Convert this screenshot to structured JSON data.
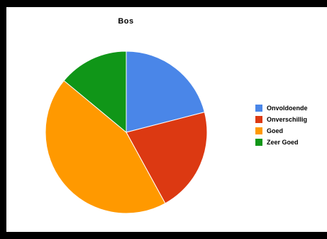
{
  "chart_data": {
    "type": "pie",
    "title": "Bos",
    "legend_position": "right",
    "slices": [
      {
        "name": "Onvoldoende",
        "value": 21,
        "color": "#4a86e8"
      },
      {
        "name": "Onverschillig",
        "value": 21,
        "color": "#dc3912"
      },
      {
        "name": "Goed",
        "value": 44,
        "color": "#ff9900"
      },
      {
        "name": "Zeer Goed",
        "value": 14,
        "color": "#109618"
      }
    ]
  }
}
